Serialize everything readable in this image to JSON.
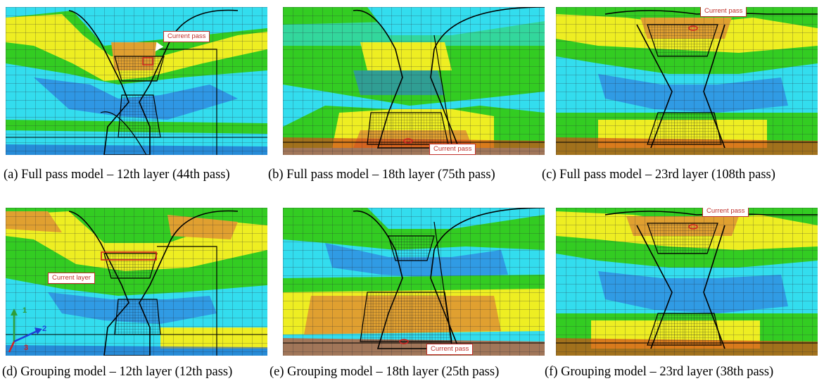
{
  "panels": [
    {
      "id": "a",
      "caption": "(a) Full pass model – 12th layer (44th pass)",
      "callout": "Current pass"
    },
    {
      "id": "b",
      "caption": "(b) Full pass model – 18th layer (75th pass)",
      "callout": "Current pass"
    },
    {
      "id": "c",
      "caption": "(c) Full pass model – 23rd layer (108th pass)",
      "callout": "Current pass"
    },
    {
      "id": "d",
      "caption": "(d) Grouping model – 12th layer (12th pass)",
      "callout": "Current layer"
    },
    {
      "id": "e",
      "caption": "(e) Grouping model – 18th layer (25th pass)",
      "callout": "Current pass"
    },
    {
      "id": "f",
      "caption": "(f) Grouping model  – 23rd layer (38th pass)",
      "callout": "Current pass"
    }
  ],
  "axes_triad": {
    "labels": [
      "1",
      "2",
      "3"
    ],
    "colors": [
      "#2e9e3a",
      "#1f3fd8",
      "#d42020"
    ]
  },
  "palette": {
    "cyan": "#33ddee",
    "green": "#33cc22",
    "yellow": "#eeee22",
    "orange": "#e0a030",
    "red": "#d04a1a",
    "blue": "#2f7fe0",
    "deep_blue": "#1e55c8"
  }
}
